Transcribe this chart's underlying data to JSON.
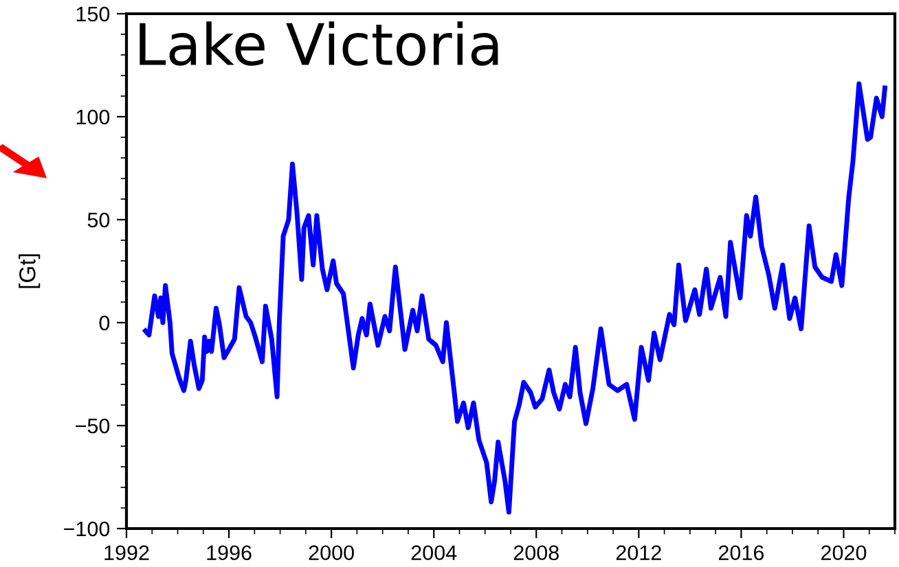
{
  "chart_data": {
    "type": "line",
    "title": "Lake Victoria",
    "ylabel": "[Gt]",
    "series": [
      {
        "color": "#0000ff",
        "x": [
          1992.74,
          1992.88,
          1993.1,
          1993.25,
          1993.34,
          1993.42,
          1993.52,
          1993.7,
          1993.78,
          1994.06,
          1994.24,
          1994.32,
          1994.5,
          1994.65,
          1994.83,
          1994.96,
          1995.05,
          1995.14,
          1995.23,
          1995.32,
          1995.5,
          1995.63,
          1995.81,
          1996.04,
          1996.22,
          1996.4,
          1996.67,
          1996.85,
          1997.03,
          1997.3,
          1997.43,
          1997.67,
          1997.88,
          1997.97,
          1998.12,
          1998.33,
          1998.48,
          1998.66,
          1998.84,
          1998.93,
          1999.11,
          1999.29,
          1999.43,
          1999.65,
          1999.83,
          2000.07,
          2000.2,
          2000.47,
          2000.86,
          2001.05,
          2001.2,
          2001.37,
          2001.51,
          2001.82,
          2002.09,
          2002.27,
          2002.5,
          2002.87,
          2003.18,
          2003.35,
          2003.54,
          2003.8,
          2004.08,
          2004.35,
          2004.49,
          2004.8,
          2004.92,
          2005.16,
          2005.34,
          2005.55,
          2005.76,
          2006.06,
          2006.24,
          2006.37,
          2006.51,
          2006.78,
          2006.93,
          2007.15,
          2007.33,
          2007.51,
          2007.78,
          2007.96,
          2008.23,
          2008.5,
          2008.68,
          2008.9,
          2009.13,
          2009.31,
          2009.53,
          2009.71,
          2009.94,
          2010.21,
          2010.52,
          2010.84,
          2011.17,
          2011.53,
          2011.84,
          2012.1,
          2012.38,
          2012.6,
          2012.83,
          2013.2,
          2013.38,
          2013.56,
          2013.83,
          2014.19,
          2014.37,
          2014.64,
          2014.82,
          2015.18,
          2015.4,
          2015.58,
          2015.96,
          2016.21,
          2016.36,
          2016.57,
          2016.8,
          2017.08,
          2017.31,
          2017.62,
          2017.89,
          2018.1,
          2018.34,
          2018.65,
          2018.88,
          2019.16,
          2019.52,
          2019.7,
          2019.93,
          2020.2,
          2020.36,
          2020.6,
          2020.93,
          2021.05,
          2021.28,
          2021.5,
          2021.61
        ],
        "values": [
          -4,
          -6,
          13,
          3,
          12,
          0,
          18,
          0,
          -15,
          -27,
          -33,
          -28,
          -9,
          -21,
          -32,
          -28,
          -7,
          -14,
          -9,
          -14,
          7,
          -1,
          -17,
          -12,
          -8,
          17,
          3,
          0,
          -7,
          -19,
          8,
          -8,
          -36,
          1,
          42,
          50,
          77,
          53,
          21,
          46,
          52,
          28,
          52,
          26,
          16,
          30,
          19,
          14,
          -22,
          -6,
          2,
          -6,
          9,
          -11,
          3,
          -4,
          27,
          -13,
          6,
          -4,
          13,
          -8,
          -11,
          -19,
          0,
          -34,
          -48,
          -39,
          -51,
          -39,
          -57,
          -68,
          -87,
          -77,
          -58,
          -77,
          -92,
          -48,
          -40,
          -29,
          -34,
          -41,
          -37,
          -23,
          -34,
          -42,
          -30,
          -36,
          -12,
          -34,
          -49,
          -32,
          -3,
          -30,
          -33,
          -30,
          -47,
          -12,
          -28,
          -5,
          -18,
          4,
          -1,
          28,
          1,
          16,
          4,
          26,
          7,
          22,
          3,
          39,
          12,
          52,
          42,
          61,
          37,
          23,
          7,
          28,
          2,
          12,
          -3,
          47,
          27,
          22,
          20,
          33,
          18,
          61,
          78,
          116,
          89,
          90,
          109,
          100,
          114
        ]
      }
    ],
    "xlim": [
      1992,
      2022
    ],
    "xticks": [
      1992,
      1996,
      2000,
      2004,
      2008,
      2012,
      2016,
      2020
    ],
    "ylim": [
      -100,
      150
    ],
    "yticks": [
      -100,
      -50,
      0,
      50,
      100,
      150
    ],
    "grid": false,
    "legend": false,
    "line_style": "solid"
  }
}
